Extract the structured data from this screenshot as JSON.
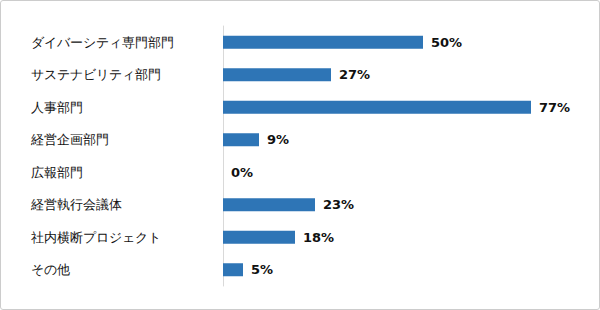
{
  "chart_data": {
    "type": "bar",
    "orientation": "horizontal",
    "categories": [
      "ダイバーシティ専門部門",
      "サステナビリティ部門",
      "人事部門",
      "経営企画部門",
      "広報部門",
      "経営執行会議体",
      "社内横断プロジェクト",
      "その他"
    ],
    "values": [
      50,
      27,
      77,
      9,
      0,
      23,
      18,
      5
    ],
    "value_labels": [
      "50%",
      "27%",
      "77%",
      "9%",
      "0%",
      "23%",
      "18%",
      "5%"
    ],
    "color": "#2e75b6",
    "data_labels": true,
    "tick_labels": "y",
    "grid": false
  }
}
